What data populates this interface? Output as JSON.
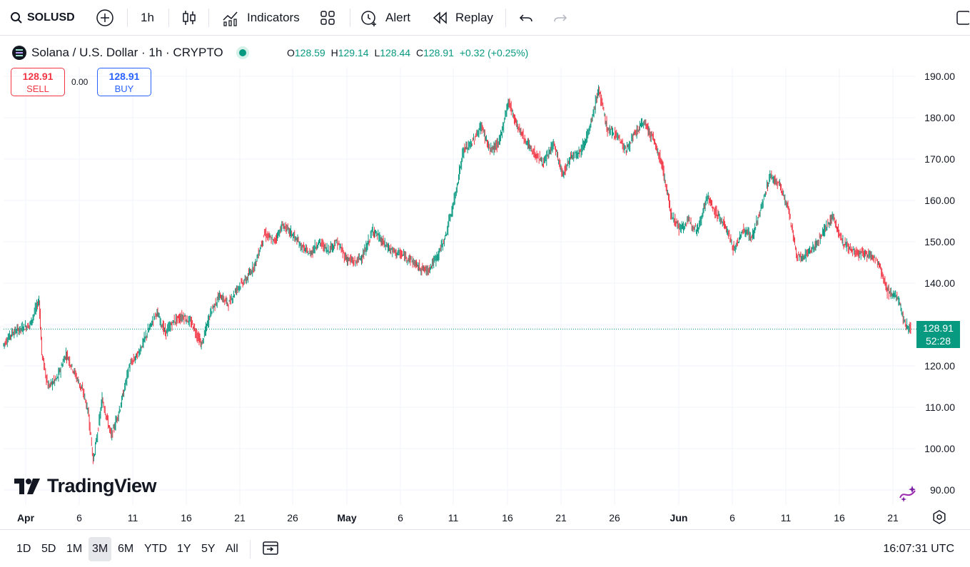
{
  "toolbar": {
    "symbol": "SOLUSD",
    "interval": "1h",
    "indicators_label": "Indicators",
    "alert_label": "Alert",
    "replay_label": "Replay"
  },
  "legend": {
    "title": "Solana / U.S. Dollar · 1h · CRYPTO",
    "o_label": "O",
    "o_value": "128.59",
    "h_label": "H",
    "h_value": "129.14",
    "l_label": "L",
    "l_value": "128.44",
    "c_label": "C",
    "c_value": "128.91",
    "change": "+0.32 (+0.25%)"
  },
  "trade": {
    "sell_price": "128.91",
    "sell_label": "SELL",
    "spread": "0.00",
    "buy_price": "128.91",
    "buy_label": "BUY"
  },
  "price_tag": {
    "price": "128.91",
    "countdown": "52:28"
  },
  "logo_text": "TradingView",
  "ranges": [
    "1D",
    "5D",
    "1M",
    "3M",
    "6M",
    "YTD",
    "1Y",
    "5Y",
    "All"
  ],
  "active_range": "3M",
  "clock": "16:07:31 UTC",
  "colors": {
    "up": "#089981",
    "down": "#f23645",
    "accent": "#2962ff"
  },
  "chart_data": {
    "type": "line",
    "symbol": "SOLUSD",
    "ylim": [
      85,
      195
    ],
    "y_ticks": [
      "190.00",
      "180.00",
      "170.00",
      "160.00",
      "150.00",
      "140.00",
      "130.00",
      "120.00",
      "110.00",
      "100.00",
      "90.00"
    ],
    "x_tick_labels": [
      "Apr",
      "6",
      "11",
      "16",
      "21",
      "26",
      "May",
      "6",
      "11",
      "16",
      "21",
      "26",
      "Jun",
      "6",
      "11",
      "16",
      "21"
    ],
    "last_price": 128.91,
    "series": [
      {
        "values": [
          [
            0,
            125
          ],
          [
            1,
            128
          ],
          [
            3,
            130
          ],
          [
            4,
            136
          ],
          [
            4.3,
            123
          ],
          [
            5,
            115
          ],
          [
            6,
            117
          ],
          [
            7,
            123
          ],
          [
            8,
            118
          ],
          [
            9,
            113
          ],
          [
            9.5,
            108
          ],
          [
            10,
            97
          ],
          [
            10.5,
            104
          ],
          [
            11,
            112
          ],
          [
            12,
            103
          ],
          [
            13,
            110
          ],
          [
            14,
            120
          ],
          [
            15,
            123
          ],
          [
            16,
            128
          ],
          [
            17,
            133
          ],
          [
            18,
            128
          ],
          [
            19,
            131
          ],
          [
            20,
            132
          ],
          [
            21,
            130
          ],
          [
            22,
            125
          ],
          [
            23,
            133
          ],
          [
            24,
            137
          ],
          [
            25,
            135
          ],
          [
            26,
            139
          ],
          [
            27,
            141
          ],
          [
            28,
            145
          ],
          [
            29,
            152
          ],
          [
            30,
            150
          ],
          [
            31,
            154
          ],
          [
            32,
            152
          ],
          [
            33,
            149
          ],
          [
            34,
            147
          ],
          [
            35,
            150
          ],
          [
            36,
            148
          ],
          [
            37,
            150
          ],
          [
            38,
            146
          ],
          [
            39,
            145
          ],
          [
            40,
            147
          ],
          [
            41,
            153
          ],
          [
            42,
            150
          ],
          [
            43,
            148
          ],
          [
            44,
            147
          ],
          [
            45,
            146
          ],
          [
            46,
            144
          ],
          [
            47,
            143
          ],
          [
            48,
            146
          ],
          [
            49,
            151
          ],
          [
            50,
            160
          ],
          [
            51,
            172
          ],
          [
            52,
            174
          ],
          [
            53,
            178
          ],
          [
            54,
            172
          ],
          [
            55,
            174
          ],
          [
            56,
            184
          ],
          [
            57,
            178
          ],
          [
            58,
            174
          ],
          [
            59,
            171
          ],
          [
            60,
            169
          ],
          [
            61,
            174
          ],
          [
            62,
            166
          ],
          [
            63,
            171
          ],
          [
            64,
            172
          ],
          [
            65,
            177
          ],
          [
            66,
            187
          ],
          [
            67,
            177
          ],
          [
            68,
            176
          ],
          [
            69,
            172
          ],
          [
            70,
            176
          ],
          [
            71,
            179
          ],
          [
            72,
            175
          ],
          [
            73,
            169
          ],
          [
            74,
            157
          ],
          [
            75,
            153
          ],
          [
            76,
            155
          ],
          [
            77,
            153
          ],
          [
            78,
            161
          ],
          [
            79,
            157
          ],
          [
            80,
            154
          ],
          [
            81,
            148
          ],
          [
            82,
            153
          ],
          [
            83,
            151
          ],
          [
            84,
            158
          ],
          [
            85,
            166
          ],
          [
            86,
            164
          ],
          [
            87,
            158
          ],
          [
            88,
            146
          ],
          [
            89,
            147
          ],
          [
            90,
            149
          ],
          [
            91,
            153
          ],
          [
            92,
            156
          ],
          [
            93,
            150
          ],
          [
            94,
            148
          ],
          [
            95,
            147
          ],
          [
            96,
            147
          ],
          [
            97,
            145
          ],
          [
            98,
            138
          ],
          [
            99,
            137
          ],
          [
            100,
            130
          ],
          [
            100.6,
            128.91
          ]
        ]
      }
    ]
  }
}
